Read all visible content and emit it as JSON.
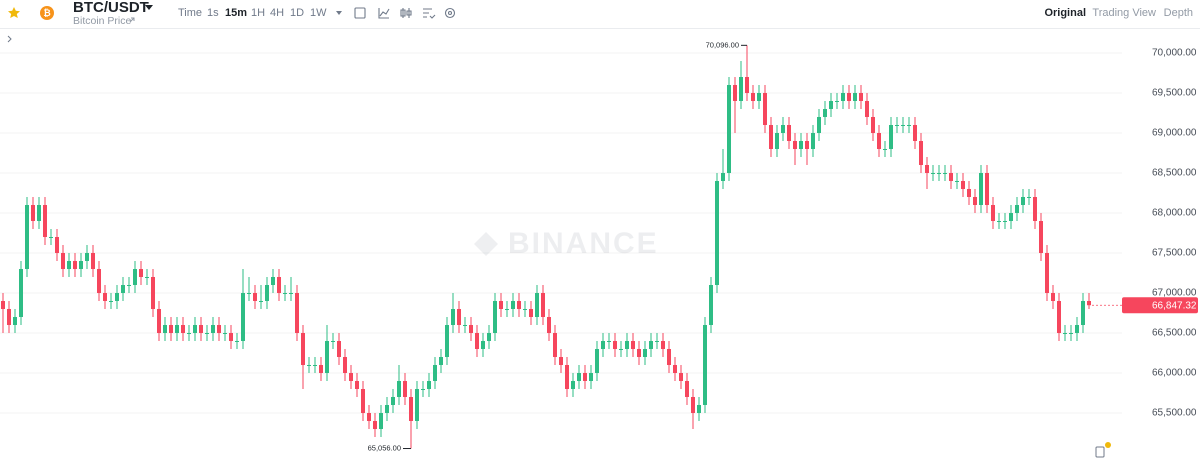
{
  "header": {
    "symbol": "BTC/USDT",
    "subtitle": "Bitcoin Price",
    "intervals": [
      "Time",
      "1s",
      "15m",
      "1H",
      "4H",
      "1D",
      "1W"
    ],
    "active_interval": 2,
    "tabs": [
      "Original",
      "Trading View",
      "Depth"
    ],
    "active_tab": 0
  },
  "chart_data": {
    "type": "candlestick",
    "watermark": "BINANCE",
    "up_color": "#2ebd85",
    "down_color": "#f6465d",
    "grid": true,
    "ylim": [
      64850,
      70312.5
    ],
    "yticks": [
      {
        "value": 65500,
        "label": "65,500.00"
      },
      {
        "value": 66000,
        "label": "66,000.00"
      },
      {
        "value": 66500,
        "label": "66,500.00"
      },
      {
        "value": 67000,
        "label": "67,000.00"
      },
      {
        "value": 67500,
        "label": "67,500.00"
      },
      {
        "value": 68000,
        "label": "68,000.00"
      },
      {
        "value": 68500,
        "label": "68,500.00"
      },
      {
        "value": 69000,
        "label": "69,000.00"
      },
      {
        "value": 69500,
        "label": "69,500.00"
      },
      {
        "value": 70000,
        "label": "70,000.00"
      }
    ],
    "high_marker": {
      "index": 124,
      "value": 70096,
      "label": "70,096.00"
    },
    "low_marker": {
      "index": 68,
      "value": 65056,
      "label": "65,056.00"
    },
    "last_price": {
      "value": 66847.32,
      "label": "66,847.32"
    },
    "candles": [
      [
        66900,
        67000,
        66500,
        66800
      ],
      [
        66800,
        66900,
        66500,
        66600
      ],
      [
        66600,
        66800,
        66500,
        66700
      ],
      [
        66700,
        67400,
        66600,
        67300
      ],
      [
        67300,
        68200,
        67200,
        68100
      ],
      [
        68100,
        68200,
        67800,
        67900
      ],
      [
        67900,
        68200,
        67800,
        68100
      ],
      [
        68100,
        68200,
        67600,
        67700
      ],
      [
        67700,
        67800,
        67600,
        67700
      ],
      [
        67700,
        67800,
        67400,
        67500
      ],
      [
        67500,
        67600,
        67200,
        67300
      ],
      [
        67300,
        67500,
        67200,
        67400
      ],
      [
        67400,
        67500,
        67200,
        67300
      ],
      [
        67300,
        67500,
        67200,
        67400
      ],
      [
        67400,
        67600,
        67300,
        67500
      ],
      [
        67500,
        67600,
        67200,
        67300
      ],
      [
        67300,
        67400,
        66900,
        67000
      ],
      [
        67000,
        67100,
        66800,
        66900
      ],
      [
        66900,
        67000,
        66800,
        66900
      ],
      [
        66900,
        67100,
        66800,
        67000
      ],
      [
        67000,
        67200,
        66900,
        67100
      ],
      [
        67100,
        67200,
        67000,
        67100
      ],
      [
        67100,
        67400,
        67000,
        67300
      ],
      [
        67300,
        67400,
        67100,
        67200
      ],
      [
        67200,
        67300,
        67100,
        67200
      ],
      [
        67200,
        67300,
        66700,
        66800
      ],
      [
        66800,
        66900,
        66400,
        66500
      ],
      [
        66500,
        66700,
        66400,
        66600
      ],
      [
        66600,
        66700,
        66400,
        66500
      ],
      [
        66500,
        66700,
        66400,
        66600
      ],
      [
        66600,
        66700,
        66400,
        66500
      ],
      [
        66500,
        66600,
        66400,
        66500
      ],
      [
        66500,
        66700,
        66400,
        66600
      ],
      [
        66600,
        66700,
        66400,
        66500
      ],
      [
        66500,
        66600,
        66400,
        66500
      ],
      [
        66500,
        66700,
        66400,
        66600
      ],
      [
        66600,
        66700,
        66400,
        66500
      ],
      [
        66500,
        66600,
        66400,
        66500
      ],
      [
        66500,
        66600,
        66300,
        66400
      ],
      [
        66400,
        66500,
        66300,
        66400
      ],
      [
        66400,
        67300,
        66300,
        67000
      ],
      [
        67000,
        67200,
        66900,
        67000
      ],
      [
        67000,
        67100,
        66800,
        66900
      ],
      [
        66900,
        67100,
        66800,
        66900
      ],
      [
        66900,
        67200,
        66800,
        67100
      ],
      [
        67100,
        67300,
        67000,
        67200
      ],
      [
        67200,
        67300,
        66900,
        67000
      ],
      [
        67000,
        67100,
        66900,
        67000
      ],
      [
        67000,
        67200,
        66900,
        67000
      ],
      [
        67000,
        67100,
        66400,
        66500
      ],
      [
        66500,
        66600,
        65800,
        66100
      ],
      [
        66100,
        66200,
        66000,
        66100
      ],
      [
        66100,
        66200,
        66000,
        66100
      ],
      [
        66100,
        66200,
        65900,
        66000
      ],
      [
        66000,
        66600,
        65900,
        66400
      ],
      [
        66400,
        66500,
        66300,
        66400
      ],
      [
        66400,
        66500,
        66100,
        66200
      ],
      [
        66200,
        66300,
        65900,
        66000
      ],
      [
        66000,
        66100,
        65800,
        65900
      ],
      [
        65900,
        66000,
        65700,
        65800
      ],
      [
        65800,
        65900,
        65400,
        65500
      ],
      [
        65500,
        65600,
        65300,
        65400
      ],
      [
        65400,
        65500,
        65200,
        65300
      ],
      [
        65300,
        65600,
        65200,
        65500
      ],
      [
        65500,
        65700,
        65400,
        65600
      ],
      [
        65600,
        65800,
        65500,
        65700
      ],
      [
        65700,
        66100,
        65600,
        65900
      ],
      [
        65900,
        66000,
        65600,
        65700
      ],
      [
        65700,
        65800,
        65056,
        65400
      ],
      [
        65400,
        65900,
        65300,
        65800
      ],
      [
        65800,
        65900,
        65700,
        65800
      ],
      [
        65800,
        66000,
        65700,
        65900
      ],
      [
        65900,
        66200,
        65800,
        66100
      ],
      [
        66100,
        66300,
        66000,
        66200
      ],
      [
        66200,
        66700,
        66100,
        66600
      ],
      [
        66600,
        67000,
        66500,
        66800
      ],
      [
        66800,
        66900,
        66500,
        66600
      ],
      [
        66600,
        66700,
        66500,
        66600
      ],
      [
        66600,
        66700,
        66400,
        66500
      ],
      [
        66500,
        66600,
        66200,
        66300
      ],
      [
        66300,
        66500,
        66200,
        66400
      ],
      [
        66400,
        66600,
        66300,
        66500
      ],
      [
        66500,
        67000,
        66400,
        66900
      ],
      [
        66900,
        67000,
        66700,
        66800
      ],
      [
        66800,
        66900,
        66700,
        66800
      ],
      [
        66800,
        67000,
        66700,
        66900
      ],
      [
        66900,
        67000,
        66700,
        66800
      ],
      [
        66800,
        66900,
        66700,
        66800
      ],
      [
        66800,
        66900,
        66600,
        66700
      ],
      [
        66700,
        67100,
        66600,
        67000
      ],
      [
        67000,
        67100,
        66600,
        66700
      ],
      [
        66700,
        66800,
        66400,
        66500
      ],
      [
        66500,
        66600,
        66100,
        66200
      ],
      [
        66200,
        66300,
        66000,
        66100
      ],
      [
        66100,
        66200,
        65700,
        65800
      ],
      [
        65800,
        66000,
        65700,
        65900
      ],
      [
        65900,
        66100,
        65800,
        66000
      ],
      [
        66000,
        66100,
        65800,
        65900
      ],
      [
        65900,
        66100,
        65800,
        66000
      ],
      [
        66000,
        66400,
        65900,
        66300
      ],
      [
        66300,
        66500,
        66200,
        66400
      ],
      [
        66400,
        66500,
        66300,
        66400
      ],
      [
        66400,
        66500,
        66200,
        66300
      ],
      [
        66300,
        66400,
        66200,
        66300
      ],
      [
        66300,
        66500,
        66200,
        66400
      ],
      [
        66400,
        66500,
        66200,
        66300
      ],
      [
        66300,
        66400,
        66100,
        66200
      ],
      [
        66200,
        66400,
        66100,
        66300
      ],
      [
        66300,
        66500,
        66200,
        66400
      ],
      [
        66400,
        66500,
        66300,
        66400
      ],
      [
        66400,
        66500,
        66200,
        66300
      ],
      [
        66300,
        66400,
        66000,
        66100
      ],
      [
        66100,
        66200,
        65900,
        66000
      ],
      [
        66000,
        66100,
        65800,
        65900
      ],
      [
        65900,
        66000,
        65600,
        65700
      ],
      [
        65700,
        65800,
        65300,
        65500
      ],
      [
        65500,
        65700,
        65400,
        65600
      ],
      [
        65600,
        66700,
        65500,
        66600
      ],
      [
        66600,
        67200,
        66500,
        67100
      ],
      [
        67100,
        68500,
        67000,
        68400
      ],
      [
        68400,
        68800,
        68300,
        68500
      ],
      [
        68500,
        69700,
        68400,
        69600
      ],
      [
        69600,
        69700,
        69000,
        69400
      ],
      [
        69400,
        69900,
        69300,
        69700
      ],
      [
        69700,
        70096,
        69400,
        69500
      ],
      [
        69500,
        69600,
        69300,
        69400
      ],
      [
        69400,
        69600,
        69300,
        69500
      ],
      [
        69500,
        69600,
        69000,
        69100
      ],
      [
        69100,
        69200,
        68700,
        68800
      ],
      [
        68800,
        69100,
        68700,
        69000
      ],
      [
        69000,
        69200,
        68900,
        69100
      ],
      [
        69100,
        69200,
        68800,
        68900
      ],
      [
        68900,
        69000,
        68600,
        68800
      ],
      [
        68800,
        69000,
        68700,
        68900
      ],
      [
        68900,
        69000,
        68600,
        68800
      ],
      [
        68800,
        69100,
        68700,
        69000
      ],
      [
        69000,
        69300,
        68900,
        69200
      ],
      [
        69200,
        69400,
        69100,
        69300
      ],
      [
        69300,
        69500,
        69200,
        69400
      ],
      [
        69400,
        69500,
        69300,
        69400
      ],
      [
        69400,
        69600,
        69300,
        69500
      ],
      [
        69500,
        69600,
        69300,
        69400
      ],
      [
        69400,
        69600,
        69300,
        69500
      ],
      [
        69500,
        69600,
        69300,
        69400
      ],
      [
        69400,
        69500,
        69100,
        69200
      ],
      [
        69200,
        69300,
        68900,
        69000
      ],
      [
        69000,
        69100,
        68700,
        68800
      ],
      [
        68800,
        68900,
        68700,
        68800
      ],
      [
        68800,
        69200,
        68700,
        69100
      ],
      [
        69100,
        69200,
        69000,
        69100
      ],
      [
        69100,
        69200,
        69000,
        69100
      ],
      [
        69100,
        69200,
        69000,
        69100
      ],
      [
        69100,
        69200,
        68800,
        68900
      ],
      [
        68900,
        69000,
        68500,
        68600
      ],
      [
        68600,
        68700,
        68300,
        68500
      ],
      [
        68500,
        68600,
        68400,
        68500
      ],
      [
        68500,
        68600,
        68400,
        68500
      ],
      [
        68500,
        68600,
        68400,
        68500
      ],
      [
        68500,
        68600,
        68300,
        68400
      ],
      [
        68400,
        68500,
        68300,
        68400
      ],
      [
        68400,
        68500,
        68200,
        68300
      ],
      [
        68300,
        68400,
        68100,
        68200
      ],
      [
        68200,
        68300,
        68000,
        68100
      ],
      [
        68100,
        68600,
        68000,
        68500
      ],
      [
        68500,
        68600,
        68000,
        68100
      ],
      [
        68100,
        68200,
        67800,
        67900
      ],
      [
        67900,
        68000,
        67800,
        67900
      ],
      [
        67900,
        68000,
        67800,
        67900
      ],
      [
        67900,
        68100,
        67800,
        68000
      ],
      [
        68000,
        68200,
        67900,
        68100
      ],
      [
        68100,
        68300,
        68000,
        68200
      ],
      [
        68200,
        68300,
        68100,
        68200
      ],
      [
        68200,
        68300,
        67800,
        67900
      ],
      [
        67900,
        68000,
        67400,
        67500
      ],
      [
        67500,
        67600,
        66900,
        67000
      ],
      [
        67000,
        67100,
        66800,
        66900
      ],
      [
        66900,
        67000,
        66400,
        66500
      ],
      [
        66500,
        66600,
        66400,
        66500
      ],
      [
        66500,
        66600,
        66400,
        66500
      ],
      [
        66500,
        66700,
        66400,
        66600
      ],
      [
        66600,
        67000,
        66500,
        66900
      ],
      [
        66900,
        67000,
        66800,
        66847.32
      ]
    ]
  }
}
